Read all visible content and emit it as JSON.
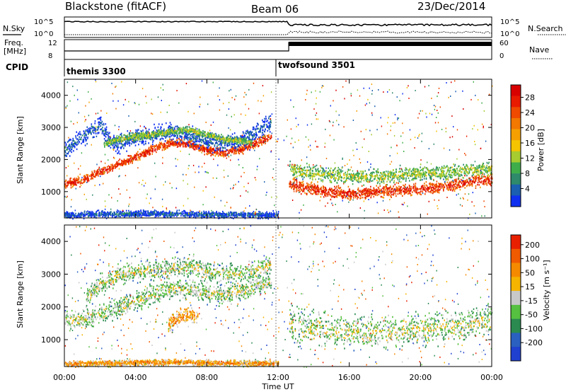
{
  "header": {
    "station": "Blackstone (fitACF)",
    "beam": "Beam 06",
    "date": "23/Dec/2014"
  },
  "top_panels": {
    "nsky_label": "N.Sky",
    "nsearch_label": "N.Search",
    "noise_ticks_left": [
      "10^5",
      "10^0"
    ],
    "noise_ticks_right": [
      "10^5",
      "10^0"
    ],
    "freq_label_1": "Freq.",
    "freq_label_2": "[MHz]",
    "freq_ticks": [
      "12",
      "8"
    ],
    "nave_label": "Nave",
    "nave_ticks": [
      "60",
      "0"
    ],
    "cpid_label": "CPID",
    "cpid_modes": [
      {
        "name": "themis 3300",
        "start_hour": 0
      },
      {
        "name": "twofsound 3501",
        "start_hour": 12
      }
    ]
  },
  "chart_data": [
    {
      "type": "heatmap",
      "ylabel": "Slant Range [km]",
      "xlabel": "Time UT",
      "xlim": [
        0,
        24
      ],
      "ylim": [
        180,
        4500
      ],
      "yticks": [
        "1000",
        "2000",
        "3000",
        "4000"
      ],
      "colorbar": {
        "label": "Power [dB]",
        "ticks": [
          "4",
          "8",
          "12",
          "16",
          "20",
          "24",
          "28"
        ],
        "colors": [
          "#1030f0",
          "#1a5fb0",
          "#2e8a6a",
          "#3fae4a",
          "#a6cc30",
          "#f4c400",
          "#f5a000",
          "#f27800",
          "#ef4a00",
          "#e81a00",
          "#d90000"
        ]
      },
      "bands": [
        {
          "x": [
            0,
            1,
            2,
            3,
            4,
            5,
            6,
            7,
            8,
            9,
            10,
            11,
            11.6
          ],
          "y": [
            1250,
            1400,
            1650,
            1850,
            2100,
            2350,
            2550,
            2500,
            2300,
            2250,
            2350,
            2600,
            2700
          ],
          "width": 180,
          "level": 9
        },
        {
          "x": [
            0,
            0.5,
            1,
            1.5,
            2,
            2.5,
            3,
            4,
            5,
            6,
            7,
            8,
            9,
            10,
            11,
            11.6
          ],
          "y": [
            2300,
            2500,
            2750,
            2900,
            3100,
            2600,
            2500,
            2700,
            2800,
            2900,
            2750,
            2600,
            2500,
            2650,
            3000,
            3200
          ],
          "width": 380,
          "level": 1
        },
        {
          "x": [
            2.2,
            3,
            4,
            5,
            6,
            7,
            8,
            9,
            10,
            10.5
          ],
          "y": [
            2500,
            2650,
            2750,
            2800,
            2900,
            2950,
            2800,
            2650,
            2600,
            2550
          ],
          "width": 150,
          "level": 4
        },
        {
          "x": [
            12.6,
            13,
            14,
            15,
            16,
            17,
            18,
            19,
            20,
            21,
            22,
            23,
            24
          ],
          "y": [
            1300,
            1200,
            1100,
            1000,
            950,
            1000,
            1050,
            1080,
            1100,
            1150,
            1250,
            1350,
            1400
          ],
          "width": 260,
          "level": 9
        },
        {
          "x": [
            12.6,
            13,
            14,
            15,
            16,
            17,
            18,
            19,
            20,
            21,
            22,
            23,
            24
          ],
          "y": [
            1750,
            1650,
            1600,
            1550,
            1500,
            1500,
            1500,
            1550,
            1600,
            1620,
            1650,
            1700,
            1750
          ],
          "width": 320,
          "level": 4
        },
        {
          "x": [
            0,
            2,
            4,
            6,
            8,
            10,
            12
          ],
          "y": [
            300,
            320,
            340,
            330,
            310,
            300,
            290
          ],
          "width": 140,
          "level": 1
        }
      ]
    },
    {
      "type": "heatmap",
      "ylabel": "Slant Range [km]",
      "xlabel": "Time UT",
      "xlim": [
        0,
        24
      ],
      "ylim": [
        180,
        4500
      ],
      "yticks": [
        "1000",
        "2000",
        "3000",
        "4000"
      ],
      "xticks": [
        "00:00",
        "04:00",
        "08:00",
        "12:00",
        "16:00",
        "20:00",
        "00:00"
      ],
      "colorbar": {
        "label": "Velocity [m s⁻¹]",
        "ticks": [
          "200",
          "100",
          "50",
          "15",
          "-15",
          "-50",
          "-100",
          "-200"
        ],
        "colors": [
          "#2040d0",
          "#2a60c0",
          "#2a8a50",
          "#56c040",
          "#c8c8c8",
          "#f5b400",
          "#f58a00",
          "#f05a00",
          "#e82000"
        ]
      },
      "bands": [
        {
          "x": [
            0,
            1,
            2,
            3,
            4,
            5,
            6,
            7,
            8,
            9,
            10,
            11,
            11.6
          ],
          "y": [
            1600,
            1650,
            1800,
            2000,
            2200,
            2400,
            2600,
            2550,
            2450,
            2400,
            2500,
            2700,
            2800
          ],
          "width": 420,
          "level": 4
        },
        {
          "x": [
            1.2,
            2,
            3,
            4,
            5,
            6,
            7,
            8,
            9,
            10,
            11,
            11.6
          ],
          "y": [
            2300,
            2700,
            3000,
            3100,
            3150,
            3200,
            3250,
            3100,
            3000,
            3050,
            3200,
            3300
          ],
          "width": 420,
          "level": 4
        },
        {
          "x": [
            12.6,
            13,
            14,
            15,
            16,
            17,
            18,
            19,
            20,
            21,
            22,
            23,
            24
          ],
          "y": [
            1500,
            1400,
            1350,
            1300,
            1250,
            1250,
            1300,
            1300,
            1350,
            1400,
            1450,
            1550,
            1600
          ],
          "width": 700,
          "level": 4
        },
        {
          "x": [
            5.8,
            6.4,
            7,
            7.5
          ],
          "y": [
            1500,
            1700,
            1800,
            1700
          ],
          "width": 300,
          "level": 6
        },
        {
          "x": [
            0,
            2,
            4,
            6,
            8,
            10,
            12
          ],
          "y": [
            280,
            300,
            320,
            330,
            310,
            300,
            290
          ],
          "width": 130,
          "level": 6
        }
      ]
    }
  ]
}
